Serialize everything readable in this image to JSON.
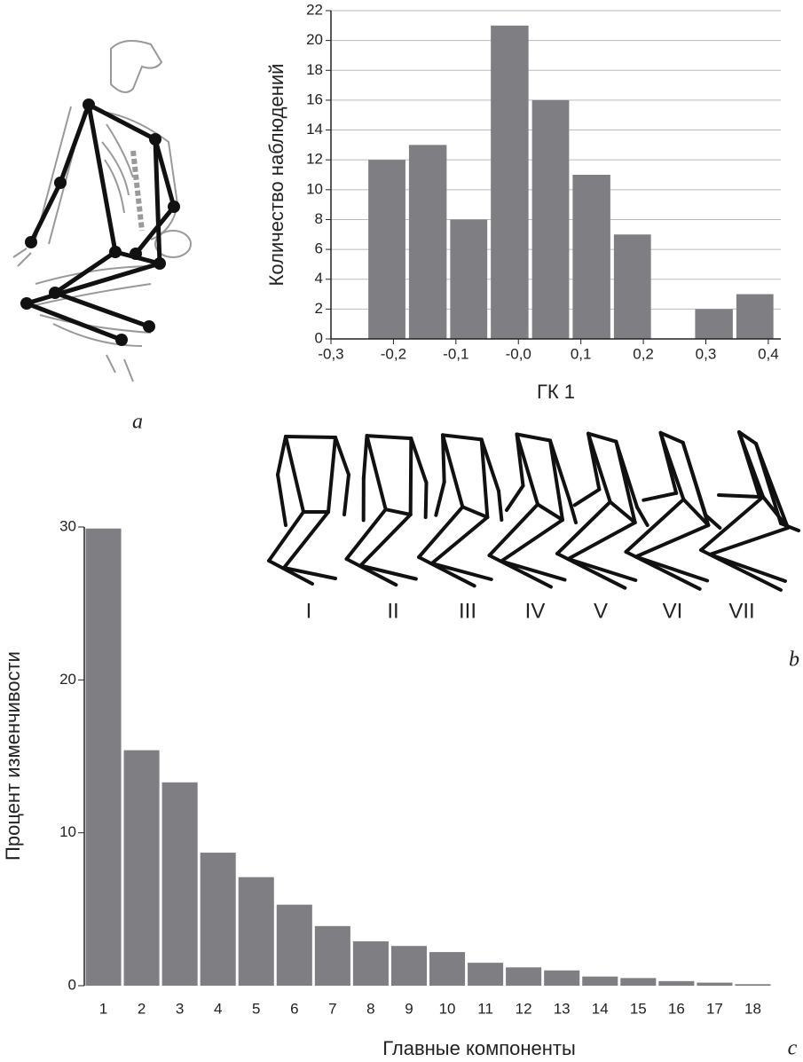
{
  "chart_data": [
    {
      "type": "histogram",
      "x_label": "ГК 1",
      "y_label": "Количество наблюдений",
      "bins": [
        -0.243,
        -0.178,
        -0.112,
        -0.047,
        0.019,
        0.084,
        0.15,
        0.215,
        0.28,
        0.346,
        0.411
      ],
      "values": [
        12,
        13,
        8,
        21,
        16,
        11,
        7,
        0,
        2,
        3
      ],
      "color": "#7f7f83",
      "xlim": [
        -0.3,
        0.42
      ],
      "ylim": [
        0,
        22
      ],
      "xticks": [
        {
          "value": -0.3,
          "label": "-0,3"
        },
        {
          "value": -0.2,
          "label": "-0,2"
        },
        {
          "value": -0.1,
          "label": "-0,1"
        },
        {
          "value": 0,
          "label": "-0,0"
        },
        {
          "value": 0.1,
          "label": "0,1"
        },
        {
          "value": 0.2,
          "label": "0,2"
        },
        {
          "value": 0.3,
          "label": "0,3"
        },
        {
          "value": 0.4,
          "label": "0,4"
        }
      ],
      "yticks": [
        0,
        2,
        4,
        6,
        8,
        10,
        12,
        14,
        16,
        18,
        20,
        22
      ],
      "grid": true
    },
    {
      "type": "bar",
      "x_label": "Главные компоненты",
      "y_label": "Процент изменчивости",
      "categories": [
        "1",
        "2",
        "3",
        "4",
        "5",
        "6",
        "7",
        "8",
        "9",
        "10",
        "11",
        "12",
        "13",
        "14",
        "15",
        "16",
        "17",
        "18"
      ],
      "values": [
        29.9,
        15.4,
        13.3,
        8.7,
        7.1,
        5.3,
        3.9,
        2.9,
        2.6,
        2.2,
        1.5,
        1.2,
        1.0,
        0.6,
        0.5,
        0.3,
        0.2,
        0.1
      ],
      "color": "#7f7f83",
      "ylim": [
        0,
        30
      ],
      "yticks": [
        0,
        10,
        20,
        30
      ],
      "grid": false
    }
  ],
  "panel_labels": [
    "a",
    "b",
    "c"
  ],
  "poses": [
    "I",
    "II",
    "III",
    "IV",
    "V",
    "VI",
    "VII"
  ]
}
